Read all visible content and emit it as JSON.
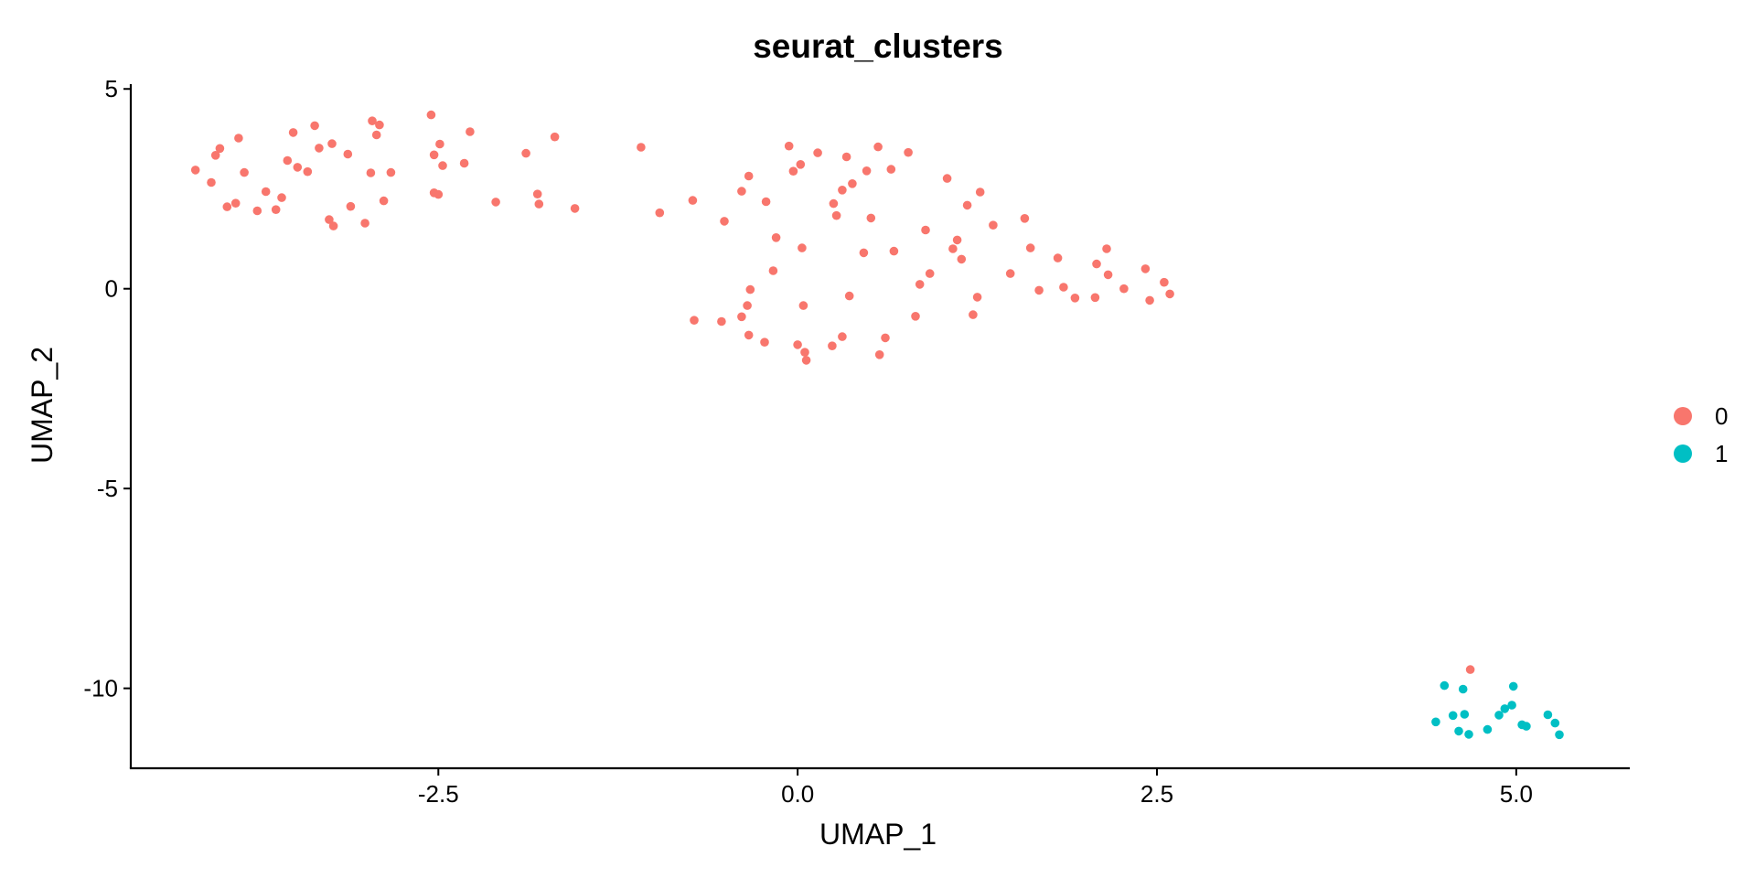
{
  "chart_data": {
    "type": "scatter",
    "title": "seurat_clusters",
    "xlabel": "UMAP_1",
    "ylabel": "UMAP_2",
    "xlim": [
      -4.64,
      5.79
    ],
    "ylim": [
      -12.0,
      5.12
    ],
    "x_ticks": [
      -2.5,
      0.0,
      2.5,
      5.0
    ],
    "x_tick_labels": [
      "-2.5",
      "0.0",
      "2.5",
      "5.0"
    ],
    "y_ticks": [
      5,
      0,
      -5,
      -10
    ],
    "y_tick_labels": [
      "5",
      "0",
      "-5",
      "-10"
    ],
    "grid": false,
    "legend_position": "right",
    "series": [
      {
        "name": "0",
        "color": "#F8766D",
        "points": [
          [
            -4.19,
            2.97
          ],
          [
            -4.08,
            2.66
          ],
          [
            -4.05,
            3.34
          ],
          [
            -4.02,
            3.51
          ],
          [
            -3.97,
            2.05
          ],
          [
            -3.91,
            2.14
          ],
          [
            -3.89,
            3.77
          ],
          [
            -3.85,
            2.91
          ],
          [
            -3.76,
            1.95
          ],
          [
            -3.7,
            2.43
          ],
          [
            -3.63,
            1.98
          ],
          [
            -3.59,
            2.28
          ],
          [
            -3.55,
            3.21
          ],
          [
            -3.51,
            3.91
          ],
          [
            -3.48,
            3.04
          ],
          [
            -3.41,
            2.93
          ],
          [
            -3.36,
            4.08
          ],
          [
            -3.33,
            3.52
          ],
          [
            -3.26,
            1.73
          ],
          [
            -3.24,
            3.63
          ],
          [
            -3.23,
            1.57
          ],
          [
            -3.13,
            3.37
          ],
          [
            -3.11,
            2.06
          ],
          [
            -3.01,
            1.64
          ],
          [
            -2.97,
            2.9
          ],
          [
            -2.96,
            4.2
          ],
          [
            -2.93,
            3.85
          ],
          [
            -2.91,
            4.1
          ],
          [
            -2.88,
            2.2
          ],
          [
            -2.83,
            2.91
          ],
          [
            -2.55,
            4.35
          ],
          [
            -2.53,
            2.4
          ],
          [
            -2.53,
            3.35
          ],
          [
            -2.5,
            2.36
          ],
          [
            -2.49,
            3.62
          ],
          [
            -2.47,
            3.08
          ],
          [
            -2.32,
            3.14
          ],
          [
            -2.28,
            3.93
          ],
          [
            -2.1,
            2.17
          ],
          [
            -1.89,
            3.39
          ],
          [
            -1.81,
            2.37
          ],
          [
            -1.8,
            2.12
          ],
          [
            -1.69,
            3.8
          ],
          [
            -1.55,
            2.01
          ],
          [
            -1.09,
            3.54
          ],
          [
            -0.96,
            1.9
          ],
          [
            -0.73,
            2.21
          ],
          [
            -0.72,
            -0.79
          ],
          [
            -0.53,
            -0.82
          ],
          [
            -0.51,
            1.69
          ],
          [
            -0.39,
            2.44
          ],
          [
            -0.39,
            -0.7
          ],
          [
            -0.35,
            -0.42
          ],
          [
            -0.34,
            2.82
          ],
          [
            -0.34,
            -1.16
          ],
          [
            -0.33,
            -0.02
          ],
          [
            -0.23,
            -1.34
          ],
          [
            -0.22,
            2.18
          ],
          [
            -0.17,
            0.45
          ],
          [
            -0.15,
            1.28
          ],
          [
            -0.06,
            3.57
          ],
          [
            -0.03,
            2.94
          ],
          [
            0.0,
            -1.4
          ],
          [
            0.02,
            3.11
          ],
          [
            0.03,
            1.02
          ],
          [
            0.04,
            -0.42
          ],
          [
            0.05,
            -1.59
          ],
          [
            0.06,
            -1.79
          ],
          [
            0.14,
            3.4
          ],
          [
            0.24,
            -1.43
          ],
          [
            0.25,
            2.13
          ],
          [
            0.27,
            1.83
          ],
          [
            0.31,
            -1.2
          ],
          [
            0.31,
            2.47
          ],
          [
            0.34,
            3.3
          ],
          [
            0.36,
            -0.18
          ],
          [
            0.38,
            2.63
          ],
          [
            0.46,
            0.9
          ],
          [
            0.48,
            2.95
          ],
          [
            0.51,
            1.77
          ],
          [
            0.56,
            3.55
          ],
          [
            0.57,
            -1.65
          ],
          [
            0.61,
            -1.23
          ],
          [
            0.65,
            2.99
          ],
          [
            0.67,
            0.94
          ],
          [
            0.77,
            3.41
          ],
          [
            0.82,
            -0.69
          ],
          [
            0.85,
            0.11
          ],
          [
            0.89,
            1.47
          ],
          [
            0.92,
            0.38
          ],
          [
            1.04,
            2.76
          ],
          [
            1.08,
            1.0
          ],
          [
            1.11,
            1.22
          ],
          [
            1.14,
            0.74
          ],
          [
            1.18,
            2.09
          ],
          [
            1.22,
            -0.65
          ],
          [
            1.25,
            -0.21
          ],
          [
            1.27,
            2.42
          ],
          [
            1.36,
            1.59
          ],
          [
            1.48,
            0.38
          ],
          [
            1.58,
            1.76
          ],
          [
            1.62,
            1.02
          ],
          [
            1.68,
            -0.04
          ],
          [
            1.81,
            0.77
          ],
          [
            1.85,
            0.04
          ],
          [
            1.93,
            -0.23
          ],
          [
            2.07,
            -0.22
          ],
          [
            2.08,
            0.62
          ],
          [
            2.15,
            1.0
          ],
          [
            2.16,
            0.35
          ],
          [
            2.27,
            0.0
          ],
          [
            2.42,
            0.5
          ],
          [
            2.45,
            -0.29
          ],
          [
            2.55,
            0.16
          ],
          [
            2.59,
            -0.13
          ],
          [
            4.68,
            -9.53
          ]
        ]
      },
      {
        "name": "1",
        "color": "#00BFC4",
        "points": [
          [
            4.44,
            -10.84
          ],
          [
            4.5,
            -9.93
          ],
          [
            4.56,
            -10.68
          ],
          [
            4.6,
            -11.07
          ],
          [
            4.63,
            -10.02
          ],
          [
            4.64,
            -10.65
          ],
          [
            4.67,
            -11.15
          ],
          [
            4.8,
            -11.03
          ],
          [
            4.88,
            -10.67
          ],
          [
            4.92,
            -10.51
          ],
          [
            4.97,
            -10.42
          ],
          [
            4.98,
            -9.95
          ],
          [
            5.04,
            -10.91
          ],
          [
            5.07,
            -10.95
          ],
          [
            5.22,
            -10.66
          ],
          [
            5.27,
            -10.87
          ],
          [
            5.3,
            -11.16
          ]
        ]
      }
    ]
  }
}
